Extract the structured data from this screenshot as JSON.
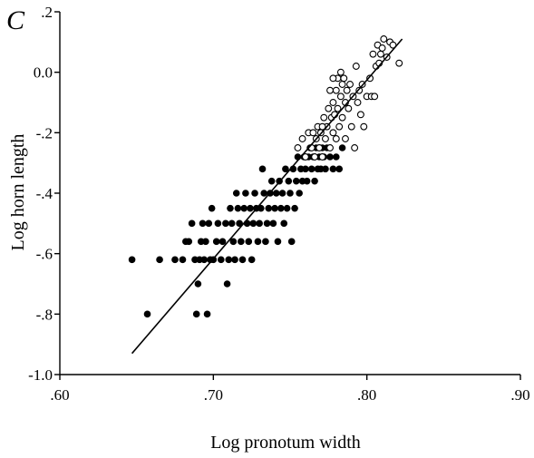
{
  "panel_label": "C",
  "chart_data": {
    "type": "scatter",
    "title": "",
    "xlabel": "Log pronotum width",
    "ylabel": "Log horn length",
    "xlim": [
      0.6,
      0.9
    ],
    "ylim": [
      -1.0,
      0.2
    ],
    "x_ticks": [
      0.6,
      0.7,
      0.8,
      0.9
    ],
    "x_tick_labels": [
      ".60",
      ".70",
      ".80",
      ".90"
    ],
    "y_ticks": [
      -1.0,
      -0.8,
      -0.6,
      -0.4,
      -0.2,
      0.0,
      0.2
    ],
    "y_tick_labels": [
      "-1.0",
      "-.8",
      "-.6",
      "-.4",
      "-.2",
      "0.0",
      ".2"
    ],
    "grid": false,
    "legend": "none",
    "series": [
      {
        "marker": "filled-circle",
        "color": "#000000",
        "points": [
          [
            0.647,
            -0.62
          ],
          [
            0.657,
            -0.8
          ],
          [
            0.665,
            -0.62
          ],
          [
            0.675,
            -0.62
          ],
          [
            0.68,
            -0.62
          ],
          [
            0.682,
            -0.56
          ],
          [
            0.684,
            -0.56
          ],
          [
            0.686,
            -0.5
          ],
          [
            0.688,
            -0.62
          ],
          [
            0.689,
            -0.8
          ],
          [
            0.69,
            -0.7
          ],
          [
            0.691,
            -0.62
          ],
          [
            0.692,
            -0.56
          ],
          [
            0.693,
            -0.5
          ],
          [
            0.694,
            -0.62
          ],
          [
            0.695,
            -0.56
          ],
          [
            0.696,
            -0.8
          ],
          [
            0.697,
            -0.5
          ],
          [
            0.698,
            -0.62
          ],
          [
            0.699,
            -0.45
          ],
          [
            0.7,
            -0.62
          ],
          [
            0.702,
            -0.56
          ],
          [
            0.703,
            -0.5
          ],
          [
            0.705,
            -0.62
          ],
          [
            0.706,
            -0.56
          ],
          [
            0.708,
            -0.5
          ],
          [
            0.709,
            -0.7
          ],
          [
            0.71,
            -0.62
          ],
          [
            0.711,
            -0.45
          ],
          [
            0.712,
            -0.5
          ],
          [
            0.713,
            -0.56
          ],
          [
            0.714,
            -0.62
          ],
          [
            0.715,
            -0.4
          ],
          [
            0.716,
            -0.45
          ],
          [
            0.717,
            -0.5
          ],
          [
            0.718,
            -0.56
          ],
          [
            0.719,
            -0.62
          ],
          [
            0.72,
            -0.45
          ],
          [
            0.721,
            -0.4
          ],
          [
            0.722,
            -0.5
          ],
          [
            0.723,
            -0.56
          ],
          [
            0.724,
            -0.45
          ],
          [
            0.725,
            -0.62
          ],
          [
            0.726,
            -0.5
          ],
          [
            0.727,
            -0.4
          ],
          [
            0.728,
            -0.45
          ],
          [
            0.729,
            -0.56
          ],
          [
            0.73,
            -0.5
          ],
          [
            0.731,
            -0.45
          ],
          [
            0.732,
            -0.32
          ],
          [
            0.733,
            -0.4
          ],
          [
            0.734,
            -0.56
          ],
          [
            0.735,
            -0.5
          ],
          [
            0.736,
            -0.45
          ],
          [
            0.737,
            -0.4
          ],
          [
            0.738,
            -0.36
          ],
          [
            0.739,
            -0.5
          ],
          [
            0.74,
            -0.45
          ],
          [
            0.741,
            -0.4
          ],
          [
            0.742,
            -0.56
          ],
          [
            0.743,
            -0.36
          ],
          [
            0.744,
            -0.45
          ],
          [
            0.745,
            -0.4
          ],
          [
            0.746,
            -0.5
          ],
          [
            0.747,
            -0.32
          ],
          [
            0.748,
            -0.45
          ],
          [
            0.749,
            -0.36
          ],
          [
            0.75,
            -0.4
          ],
          [
            0.751,
            -0.56
          ],
          [
            0.752,
            -0.32
          ],
          [
            0.753,
            -0.45
          ],
          [
            0.754,
            -0.36
          ],
          [
            0.755,
            -0.28
          ],
          [
            0.756,
            -0.4
          ],
          [
            0.757,
            -0.32
          ],
          [
            0.758,
            -0.36
          ],
          [
            0.759,
            -0.28
          ],
          [
            0.76,
            -0.32
          ],
          [
            0.761,
            -0.36
          ],
          [
            0.762,
            -0.28
          ],
          [
            0.763,
            -0.25
          ],
          [
            0.764,
            -0.32
          ],
          [
            0.765,
            -0.28
          ],
          [
            0.766,
            -0.36
          ],
          [
            0.767,
            -0.25
          ],
          [
            0.768,
            -0.32
          ],
          [
            0.769,
            -0.28
          ],
          [
            0.77,
            -0.32
          ],
          [
            0.771,
            -0.25
          ],
          [
            0.772,
            -0.28
          ],
          [
            0.773,
            -0.32
          ],
          [
            0.774,
            -0.25
          ],
          [
            0.776,
            -0.28
          ],
          [
            0.778,
            -0.32
          ],
          [
            0.78,
            -0.28
          ],
          [
            0.782,
            -0.32
          ],
          [
            0.784,
            -0.25
          ]
        ]
      },
      {
        "marker": "open-circle",
        "color": "#000000",
        "points": [
          [
            0.755,
            -0.25
          ],
          [
            0.758,
            -0.22
          ],
          [
            0.76,
            -0.28
          ],
          [
            0.762,
            -0.2
          ],
          [
            0.764,
            -0.25
          ],
          [
            0.765,
            -0.2
          ],
          [
            0.766,
            -0.28
          ],
          [
            0.767,
            -0.22
          ],
          [
            0.768,
            -0.18
          ],
          [
            0.769,
            -0.25
          ],
          [
            0.77,
            -0.2
          ],
          [
            0.771,
            -0.28
          ],
          [
            0.772,
            -0.15
          ],
          [
            0.773,
            -0.22
          ],
          [
            0.774,
            -0.18
          ],
          [
            0.775,
            -0.12
          ],
          [
            0.776,
            -0.25
          ],
          [
            0.777,
            -0.15
          ],
          [
            0.778,
            -0.2
          ],
          [
            0.778,
            -0.1
          ],
          [
            0.779,
            -0.14
          ],
          [
            0.78,
            -0.06
          ],
          [
            0.78,
            -0.22
          ],
          [
            0.781,
            -0.02
          ],
          [
            0.781,
            -0.12
          ],
          [
            0.782,
            -0.18
          ],
          [
            0.783,
            -0.08
          ],
          [
            0.784,
            -0.04
          ],
          [
            0.784,
            -0.15
          ],
          [
            0.785,
            -0.02
          ],
          [
            0.786,
            -0.1
          ],
          [
            0.786,
            -0.22
          ],
          [
            0.787,
            -0.06
          ],
          [
            0.788,
            -0.12
          ],
          [
            0.789,
            -0.04
          ],
          [
            0.79,
            -0.18
          ],
          [
            0.791,
            -0.08
          ],
          [
            0.792,
            -0.25
          ],
          [
            0.793,
            0.02
          ],
          [
            0.794,
            -0.1
          ],
          [
            0.795,
            -0.06
          ],
          [
            0.796,
            -0.14
          ],
          [
            0.797,
            -0.04
          ],
          [
            0.798,
            -0.18
          ],
          [
            0.8,
            -0.08
          ],
          [
            0.802,
            -0.02
          ],
          [
            0.803,
            -0.08
          ],
          [
            0.804,
            0.06
          ],
          [
            0.805,
            -0.08
          ],
          [
            0.806,
            0.02
          ],
          [
            0.807,
            0.09
          ],
          [
            0.808,
            0.03
          ],
          [
            0.809,
            0.06
          ],
          [
            0.81,
            0.08
          ],
          [
            0.811,
            0.11
          ],
          [
            0.813,
            0.05
          ],
          [
            0.815,
            0.1
          ],
          [
            0.817,
            0.09
          ],
          [
            0.821,
            0.03
          ],
          [
            0.778,
            -0.02
          ],
          [
            0.776,
            -0.06
          ],
          [
            0.783,
            0.0
          ],
          [
            0.771,
            -0.18
          ]
        ]
      }
    ],
    "fit_line": {
      "x": [
        0.647,
        0.823
      ],
      "y": [
        -0.93,
        0.11
      ]
    }
  }
}
